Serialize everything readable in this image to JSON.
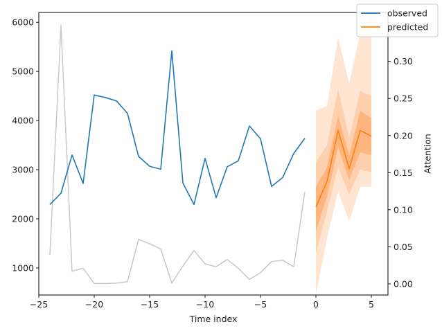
{
  "chart_data": {
    "type": "line",
    "xlabel": "Time index",
    "ylabel_right": "Attention",
    "xlim": [
      -25,
      6.5
    ],
    "ylim_left": [
      450,
      6200
    ],
    "ylim_right": [
      -0.015,
      0.366
    ],
    "x_ticks": [
      -25,
      -20,
      -15,
      -10,
      -5,
      0,
      5
    ],
    "y_left_ticks": [
      1000,
      2000,
      3000,
      4000,
      5000,
      6000
    ],
    "y_right_ticks": [
      0.0,
      0.05,
      0.1,
      0.15,
      0.2,
      0.25,
      0.3
    ],
    "colors": {
      "observed": "#1f77b4",
      "predicted": "#ff7f0e",
      "attention": "#c8c8c8",
      "band_outer": "#ffe6d3",
      "band_mid": "#ffd0ad",
      "band_inner": "#ffb67e"
    },
    "legend": {
      "placement": "top-right",
      "entries": [
        "observed",
        "predicted"
      ]
    },
    "series": [
      {
        "name": "observed",
        "axis": "left",
        "x": [
          -24,
          -23,
          -22,
          -21,
          -20,
          -19,
          -18,
          -17,
          -16,
          -15,
          -14,
          -13,
          -12,
          -11,
          -10,
          -9,
          -8,
          -7,
          -6,
          -5,
          -4,
          -3,
          -2,
          -1
        ],
        "values": [
          2290,
          2520,
          3300,
          2720,
          4520,
          4470,
          4400,
          4150,
          3270,
          3070,
          3010,
          5420,
          2730,
          2290,
          3230,
          2430,
          3060,
          3180,
          3890,
          3630,
          2660,
          2840,
          3330,
          3640
        ]
      },
      {
        "name": "predicted",
        "axis": "left",
        "x": [
          0,
          1,
          2,
          3,
          4,
          5
        ],
        "values": [
          2240,
          2760,
          3800,
          3020,
          3800,
          3680
        ]
      },
      {
        "name": "attention",
        "axis": "right",
        "x": [
          -24,
          -23,
          -22,
          -21,
          -20,
          -19,
          -18,
          -17,
          -16,
          -15,
          -14,
          -13,
          -12,
          -11,
          -10,
          -9,
          -8,
          -7,
          -6,
          -5,
          -4,
          -3,
          -2,
          -1
        ],
        "values": [
          0.039,
          0.349,
          0.017,
          0.021,
          0.0005,
          0.0005,
          0.001,
          0.003,
          0.06,
          0.054,
          0.047,
          0.001,
          0.024,
          0.045,
          0.027,
          0.023,
          0.033,
          0.021,
          0.006,
          0.015,
          0.03,
          0.032,
          0.023,
          0.124
        ]
      }
    ],
    "bands": [
      {
        "level": "outer",
        "x": [
          0,
          1,
          2,
          3,
          4,
          5
        ],
        "lower": [
          450,
          1600,
          2550,
          1950,
          2650,
          2650
        ],
        "upper": [
          4200,
          4300,
          5700,
          4750,
          5800,
          6200
        ]
      },
      {
        "level": "mid",
        "x": [
          0,
          1,
          2,
          3,
          4,
          5
        ],
        "lower": [
          1300,
          2150,
          3050,
          2500,
          3000,
          2950
        ],
        "upper": [
          3150,
          3500,
          4650,
          3650,
          4600,
          4500
        ]
      },
      {
        "level": "inner",
        "x": [
          0,
          1,
          2,
          3,
          4,
          5
        ],
        "lower": [
          1750,
          2450,
          3450,
          2800,
          3350,
          3300
        ],
        "upper": [
          2650,
          3050,
          4100,
          3300,
          4200,
          4050
        ]
      }
    ]
  }
}
